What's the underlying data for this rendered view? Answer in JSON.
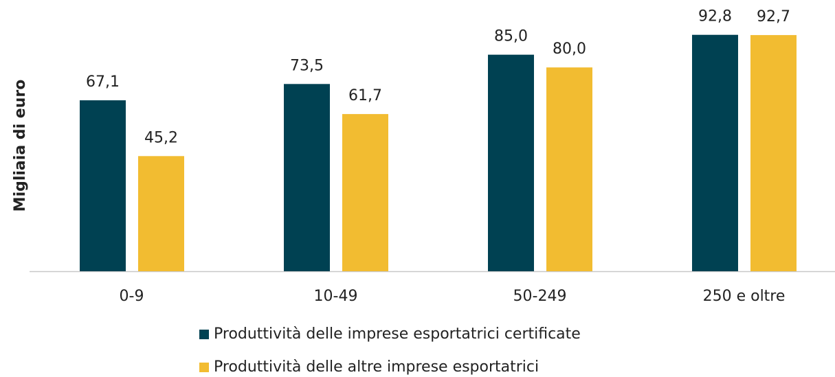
{
  "chart_data": {
    "type": "bar",
    "ylabel": "Migliaia di euro",
    "categories": [
      "0-9",
      "10-49",
      "50-249",
      "250 e oltre"
    ],
    "series": [
      {
        "name": "Produttività delle imprese esportatrici certificate",
        "color": "#004152",
        "values": [
          67.1,
          73.5,
          85.0,
          92.8
        ],
        "value_labels": [
          "67,1",
          "73,5",
          "85,0",
          "92,8"
        ]
      },
      {
        "name": "Produttività delle altre imprese esportatrici",
        "color": "#f2bc31",
        "values": [
          45.2,
          61.7,
          80.0,
          92.7
        ],
        "value_labels": [
          "45,2",
          "61,7",
          "80,0",
          "92,7"
        ]
      }
    ],
    "ylim": [
      0,
      100
    ],
    "legend": "bottom"
  }
}
